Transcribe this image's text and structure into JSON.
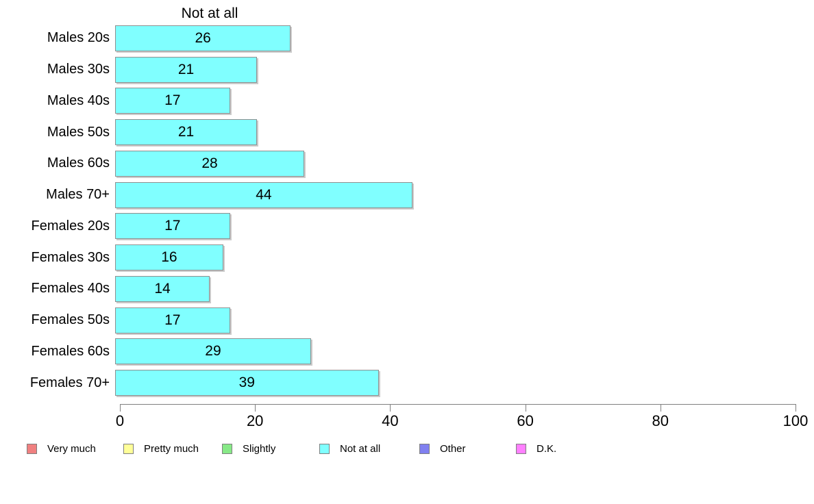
{
  "chart_data": {
    "type": "bar",
    "orientation": "horizontal",
    "title": "Not at all",
    "categories": [
      "Males 20s",
      "Males 30s",
      "Males 40s",
      "Males 50s",
      "Males 60s",
      "Males 70+",
      "Females 20s",
      "Females 30s",
      "Females 40s",
      "Females 50s",
      "Females 60s",
      "Females 70+"
    ],
    "values": [
      26,
      21,
      17,
      21,
      28,
      44,
      17,
      16,
      14,
      17,
      29,
      39
    ],
    "xlabel": "",
    "ylabel": "",
    "xlim": [
      0,
      100
    ],
    "xticks": [
      0,
      20,
      40,
      60,
      80,
      100
    ],
    "grid": false,
    "bar_fill_color": "#80FFFF",
    "bar_border_color": "#8F8F8F",
    "axis_color": "#7F7F7F",
    "legend_position": "bottom",
    "legend": [
      {
        "label": "Very much",
        "color": "#F08080"
      },
      {
        "label": "Pretty much",
        "color": "#FFFF99"
      },
      {
        "label": "Slightly",
        "color": "#87E987"
      },
      {
        "label": "Not at all",
        "color": "#80FFFF"
      },
      {
        "label": "Other",
        "color": "#8080F0"
      },
      {
        "label": "D.K.",
        "color": "#FF80FF"
      }
    ]
  }
}
